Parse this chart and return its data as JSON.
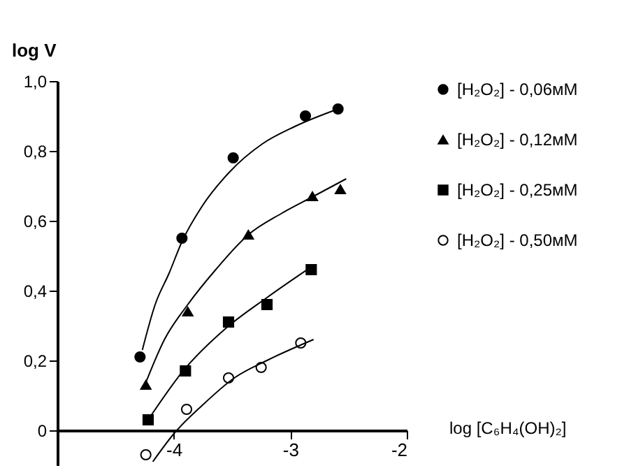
{
  "chart_data": {
    "type": "scatter",
    "xlabel": "log [C₆H₄(OH)₂]",
    "ylabel": "log V",
    "xlim": [
      -5,
      -2
    ],
    "ylim": [
      -0.1,
      1.0
    ],
    "xticks": [
      -4,
      -3,
      -2
    ],
    "yticks": [
      0,
      {
        "value": 0.2,
        "label": "0,2"
      },
      {
        "value": 0.4,
        "label": "0,4"
      },
      {
        "value": 0.6,
        "label": "0,6"
      },
      {
        "value": 0.8,
        "label": "0,8"
      },
      {
        "value": 1.0,
        "label": "1,0"
      }
    ],
    "grid": false,
    "legend": "right",
    "series": [
      {
        "name": "[H₂O₂] - 0,06мМ",
        "marker": "circle",
        "color": "#000000",
        "x": [
          -4.29,
          -3.93,
          -3.49,
          -2.87,
          -2.59
        ],
        "values": [
          0.21,
          0.55,
          0.78,
          0.9,
          0.92
        ]
      },
      {
        "name": "[H₂O₂] - 0,12мМ",
        "marker": "triangle",
        "color": "#000000",
        "x": [
          -4.24,
          -3.88,
          -3.36,
          -2.81,
          -2.57
        ],
        "values": [
          0.13,
          0.34,
          0.56,
          0.67,
          0.69
        ]
      },
      {
        "name": "[H₂O₂] - 0,25мМ",
        "marker": "square",
        "color": "#000000",
        "x": [
          -4.22,
          -3.9,
          -3.53,
          -3.2,
          -2.82
        ],
        "values": [
          0.03,
          0.17,
          0.31,
          0.36,
          0.46
        ]
      },
      {
        "name": "[H₂O₂] - 0,50мМ",
        "marker": "circle",
        "color": "#ffffff",
        "x": [
          -4.24,
          -3.89,
          -3.53,
          -3.25,
          -2.91
        ],
        "values": [
          -0.07,
          0.06,
          0.15,
          0.18,
          0.25
        ]
      },
      {
        "type": "line",
        "color": "#000000",
        "x": [
          -4.27,
          -4.16,
          -4.04,
          -3.93,
          -3.76,
          -3.52,
          -3.24,
          -2.96,
          -2.59
        ],
        "values": [
          0.23,
          0.36,
          0.45,
          0.54,
          0.64,
          0.74,
          0.82,
          0.87,
          0.92
        ]
      },
      {
        "type": "line",
        "color": "#000000",
        "x": [
          -4.26,
          -4.08,
          -3.88,
          -3.64,
          -3.36,
          -3.08,
          -2.8,
          -2.52
        ],
        "values": [
          0.12,
          0.26,
          0.36,
          0.46,
          0.56,
          0.62,
          0.67,
          0.72
        ]
      },
      {
        "type": "line",
        "color": "#000000",
        "x": [
          -4.2,
          -3.92,
          -3.56,
          -3.2,
          -2.81
        ],
        "values": [
          0.04,
          0.17,
          0.29,
          0.38,
          0.47
        ]
      },
      {
        "type": "line",
        "color": "#000000",
        "x": [
          -4.18,
          -4.0,
          -3.76,
          -3.48,
          -3.2,
          -2.8
        ],
        "values": [
          -0.09,
          -0.01,
          0.07,
          0.15,
          0.2,
          0.26
        ]
      }
    ]
  }
}
